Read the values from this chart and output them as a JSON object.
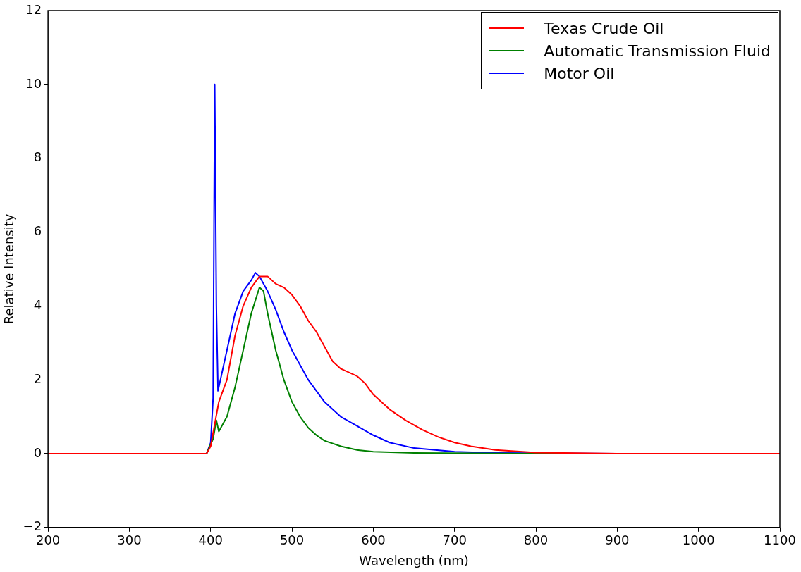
{
  "chart_data": {
    "type": "line",
    "xlabel": "Wavelength (nm)",
    "ylabel": "Relative Intensity",
    "xlim": [
      200,
      1100
    ],
    "ylim": [
      -2,
      12
    ],
    "xticks": [
      200,
      300,
      400,
      500,
      600,
      700,
      800,
      900,
      1000,
      1100
    ],
    "yticks": [
      {
        "value": -2,
        "label": "−2"
      },
      0,
      2,
      4,
      6,
      8,
      10,
      12
    ],
    "grid": false,
    "legend": "top right",
    "marker": "none",
    "line_style": "solid",
    "series": [
      {
        "name": "Texas Crude Oil",
        "color": "#ff0000",
        "x": [
          200,
          300,
          395,
          400,
          405,
          410,
          420,
          430,
          440,
          450,
          460,
          470,
          480,
          490,
          500,
          510,
          520,
          530,
          540,
          550,
          560,
          570,
          580,
          590,
          600,
          620,
          640,
          660,
          680,
          700,
          720,
          750,
          800,
          900,
          1000,
          1100
        ],
        "values": [
          0,
          0,
          0,
          0.2,
          0.8,
          1.4,
          2.0,
          3.2,
          4.0,
          4.5,
          4.8,
          4.8,
          4.6,
          4.5,
          4.3,
          4.0,
          3.6,
          3.3,
          2.9,
          2.5,
          2.3,
          2.2,
          2.1,
          1.9,
          1.6,
          1.2,
          0.9,
          0.65,
          0.45,
          0.3,
          0.2,
          0.1,
          0.03,
          0,
          0,
          0
        ]
      },
      {
        "name": "Automatic Transmission Fluid",
        "color": "#008000",
        "x": [
          200,
          300,
          395,
          403,
          407,
          410,
          420,
          430,
          440,
          450,
          460,
          465,
          470,
          480,
          490,
          500,
          510,
          520,
          530,
          540,
          560,
          580,
          600,
          650,
          800,
          1000,
          1100
        ],
        "values": [
          0,
          0,
          0,
          0.4,
          0.9,
          0.6,
          1.0,
          1.8,
          2.8,
          3.8,
          4.5,
          4.4,
          3.8,
          2.8,
          2.0,
          1.4,
          1.0,
          0.7,
          0.5,
          0.35,
          0.2,
          0.1,
          0.05,
          0.02,
          0,
          0,
          0
        ]
      },
      {
        "name": "Motor Oil",
        "color": "#0000ff",
        "x": [
          200,
          300,
          395,
          400,
          403,
          405,
          407,
          409,
          415,
          420,
          430,
          440,
          450,
          455,
          460,
          470,
          480,
          490,
          500,
          510,
          520,
          530,
          540,
          550,
          560,
          580,
          600,
          620,
          650,
          700,
          750,
          900,
          1100
        ],
        "values": [
          0,
          0,
          0,
          0.3,
          1.5,
          10.0,
          4,
          1.7,
          2.3,
          2.8,
          3.8,
          4.4,
          4.7,
          4.9,
          4.8,
          4.4,
          3.9,
          3.3,
          2.8,
          2.4,
          2.0,
          1.7,
          1.4,
          1.2,
          1.0,
          0.75,
          0.5,
          0.3,
          0.15,
          0.05,
          0.02,
          0,
          0
        ]
      }
    ]
  }
}
